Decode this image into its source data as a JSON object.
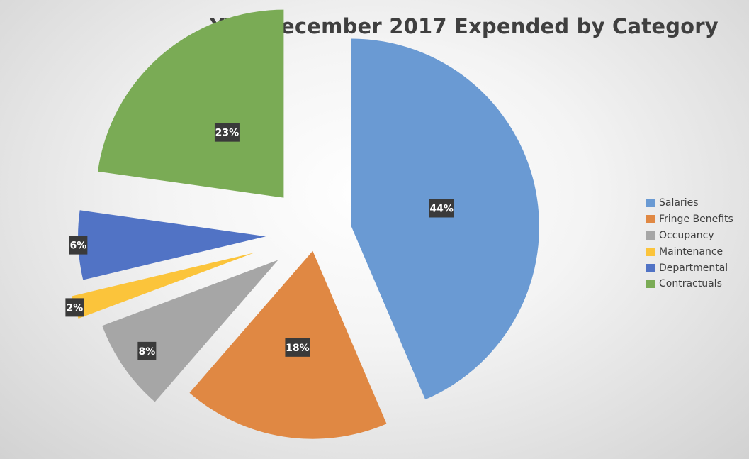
{
  "chart_data": {
    "type": "pie",
    "title": "YTD December 2017 Expended by Category",
    "legend_position": "right",
    "categories": [
      "Salaries",
      "Fringe Benefits",
      "Occupancy",
      "Maintenance",
      "Departmental",
      "Contractuals"
    ],
    "values": [
      44,
      18,
      8,
      2,
      6,
      23
    ],
    "data_labels": [
      "44%",
      "18%",
      "8%",
      "2%",
      "6%",
      "23%"
    ],
    "colors": [
      "#6a9ad3",
      "#e08843",
      "#a6a6a6",
      "#fbc43b",
      "#5173c5",
      "#7aab55"
    ],
    "exploded": true
  }
}
